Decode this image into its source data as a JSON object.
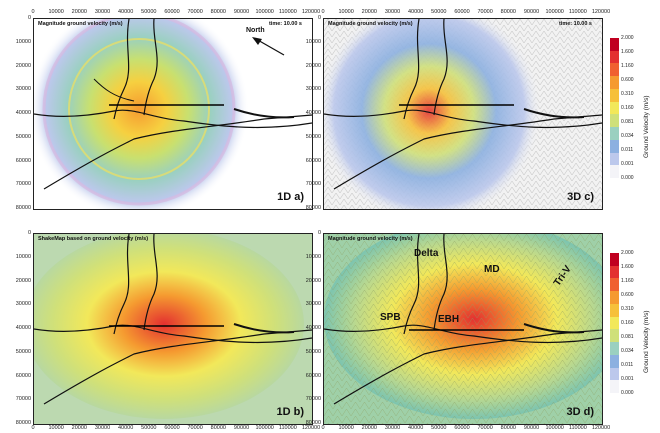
{
  "panels": {
    "a": {
      "title": "Magnitude ground velocity (m/s)",
      "time": "time: 10.00 s",
      "label": "1D  a)",
      "north": "North"
    },
    "c": {
      "title": "Magnitude ground velocity (m/s)",
      "time": "time: 10.00 s",
      "label": "3D  c)"
    },
    "b": {
      "title": "ShakeMap based on ground velocity (m/s)",
      "label": "1D  b)"
    },
    "d": {
      "title": "Magnitude ground velocity (m/s)",
      "label": "3D  d)",
      "regions": {
        "delta": "Delta",
        "md": "MD",
        "triv": "Tri-V",
        "spb": "SPB",
        "ebh": "EBH"
      }
    }
  },
  "axes": {
    "y_ticks": [
      "0",
      "10000",
      "20000",
      "30000",
      "40000",
      "50000",
      "60000",
      "70000",
      "80000"
    ],
    "x_ticks": [
      "0",
      "10000",
      "20000",
      "30000",
      "40000",
      "50000",
      "60000",
      "70000",
      "80000",
      "90000",
      "100000",
      "110000",
      "120000"
    ]
  },
  "colorbar": {
    "title": "Ground Velocity (m/s)",
    "ticks": [
      "2.000",
      "1.600",
      "1.160",
      "0.600",
      "0.310",
      "0.160",
      "0.081",
      "0.034",
      "0.011",
      "0.001",
      "0.000"
    ],
    "colors": [
      "#c00020",
      "#e33030",
      "#f06030",
      "#f59a30",
      "#f6c03a",
      "#f2e85a",
      "#cfe07a",
      "#9ad0c0",
      "#8cb0e0",
      "#bcc8ec",
      "#f4f4f8"
    ]
  }
}
